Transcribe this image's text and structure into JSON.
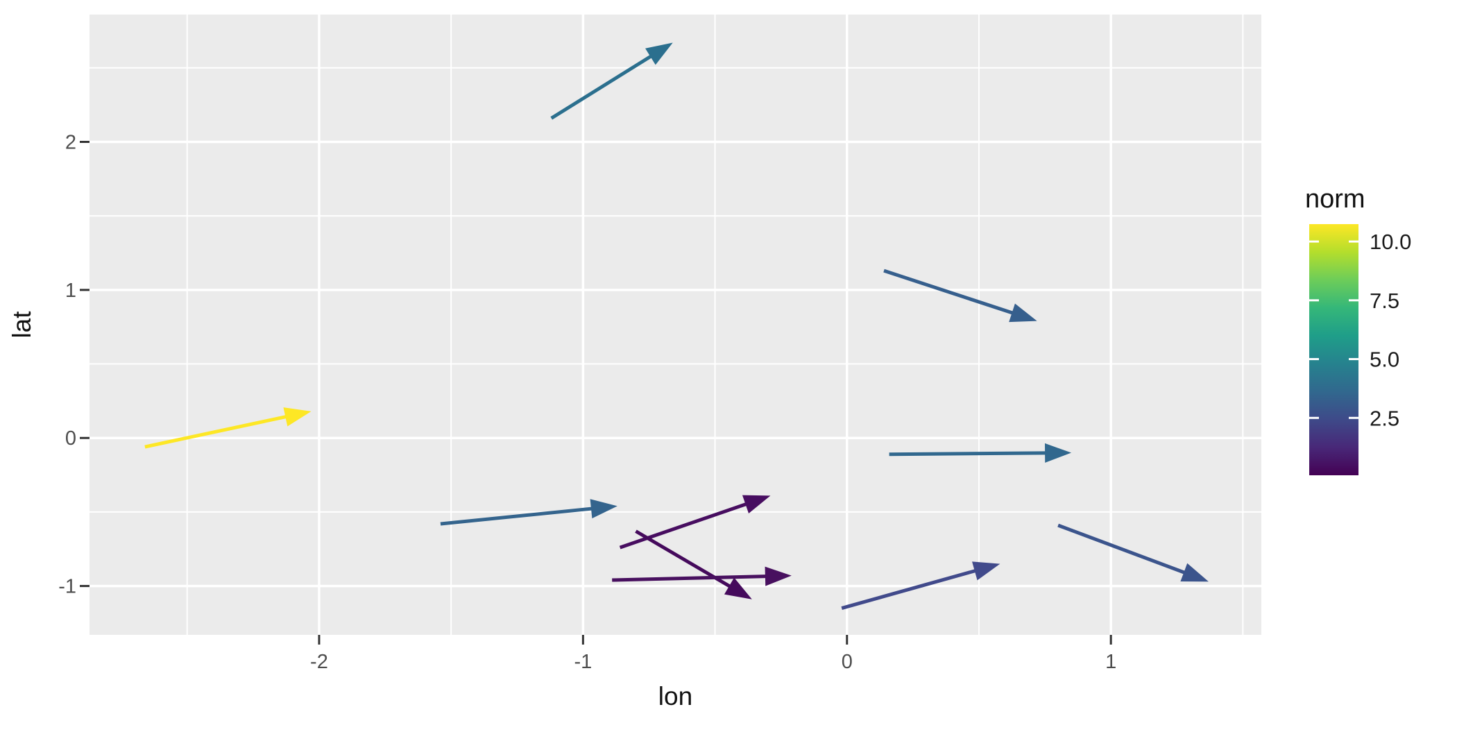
{
  "figure": {
    "background": "#FFFFFF",
    "panel_background": "#EBEBEB",
    "grid_color": "#FFFFFF",
    "tick_mark_color": "#333333",
    "tick_label_color": "#4D4D4D",
    "axis_title_color": "#111111"
  },
  "chart_data": {
    "type": "scatter",
    "subtype": "quiver-arrows",
    "title": "",
    "xlabel": "lon",
    "ylabel": "lat",
    "xlim": [
      -2.87,
      1.57
    ],
    "ylim": [
      -1.33,
      2.86
    ],
    "grid": true,
    "x_major_ticks": [
      -2,
      -1,
      0,
      1
    ],
    "x_tick_labels": [
      "-2",
      "-1",
      "0",
      "1"
    ],
    "x_minor_ticks": [
      -2.5,
      -1.5,
      -0.5,
      0.5,
      1.5
    ],
    "y_major_ticks": [
      -1,
      0,
      1,
      2
    ],
    "y_tick_labels": [
      "-1",
      "0",
      "1",
      "2"
    ],
    "y_minor_ticks": [
      -0.5,
      0.5,
      1.5,
      2.5
    ],
    "legend": {
      "title": "norm",
      "position": "right",
      "type": "colorbar",
      "range": [
        0.06,
        10.74
      ],
      "ticks": [
        10.0,
        7.5,
        5.0,
        2.5
      ],
      "tick_labels": [
        "10.0",
        "7.5",
        "5.0",
        "2.5"
      ],
      "colormap": "viridis",
      "viridis_stops_low_to_high": [
        "#440154",
        "#482878",
        "#3E4A89",
        "#31688E",
        "#26828E",
        "#1F9E89",
        "#35B779",
        "#6DCD59",
        "#B4DE2C",
        "#FDE725"
      ]
    },
    "series": [
      {
        "x": -1.12,
        "y": 2.16,
        "xend": -0.66,
        "yend": 2.67,
        "norm": 4.4,
        "color": "#2B6F8E"
      },
      {
        "x": 0.14,
        "y": 1.13,
        "xend": 0.72,
        "yend": 0.79,
        "norm": 3.2,
        "color": "#365F8D"
      },
      {
        "x": -2.66,
        "y": -0.06,
        "xend": -2.03,
        "yend": 0.18,
        "norm": 10.6,
        "color": "#FDE725"
      },
      {
        "x": -1.54,
        "y": -0.58,
        "xend": -0.87,
        "yend": -0.46,
        "norm": 3.5,
        "color": "#34648D"
      },
      {
        "x": -0.86,
        "y": -0.74,
        "xend": -0.29,
        "yend": -0.39,
        "norm": 0.9,
        "color": "#470D60"
      },
      {
        "x": -0.8,
        "y": -0.63,
        "xend": -0.36,
        "yend": -1.09,
        "norm": 0.7,
        "color": "#450A5C"
      },
      {
        "x": -0.89,
        "y": -0.96,
        "xend": -0.21,
        "yend": -0.93,
        "norm": 1.0,
        "color": "#48105F"
      },
      {
        "x": 0.16,
        "y": -0.11,
        "xend": 0.85,
        "yend": -0.1,
        "norm": 3.6,
        "color": "#31688E"
      },
      {
        "x": -0.02,
        "y": -1.15,
        "xend": 0.58,
        "yend": -0.85,
        "norm": 2.0,
        "color": "#414A8B"
      },
      {
        "x": 0.8,
        "y": -0.59,
        "xend": 1.37,
        "yend": -0.97,
        "norm": 2.6,
        "color": "#3B548C"
      }
    ]
  }
}
